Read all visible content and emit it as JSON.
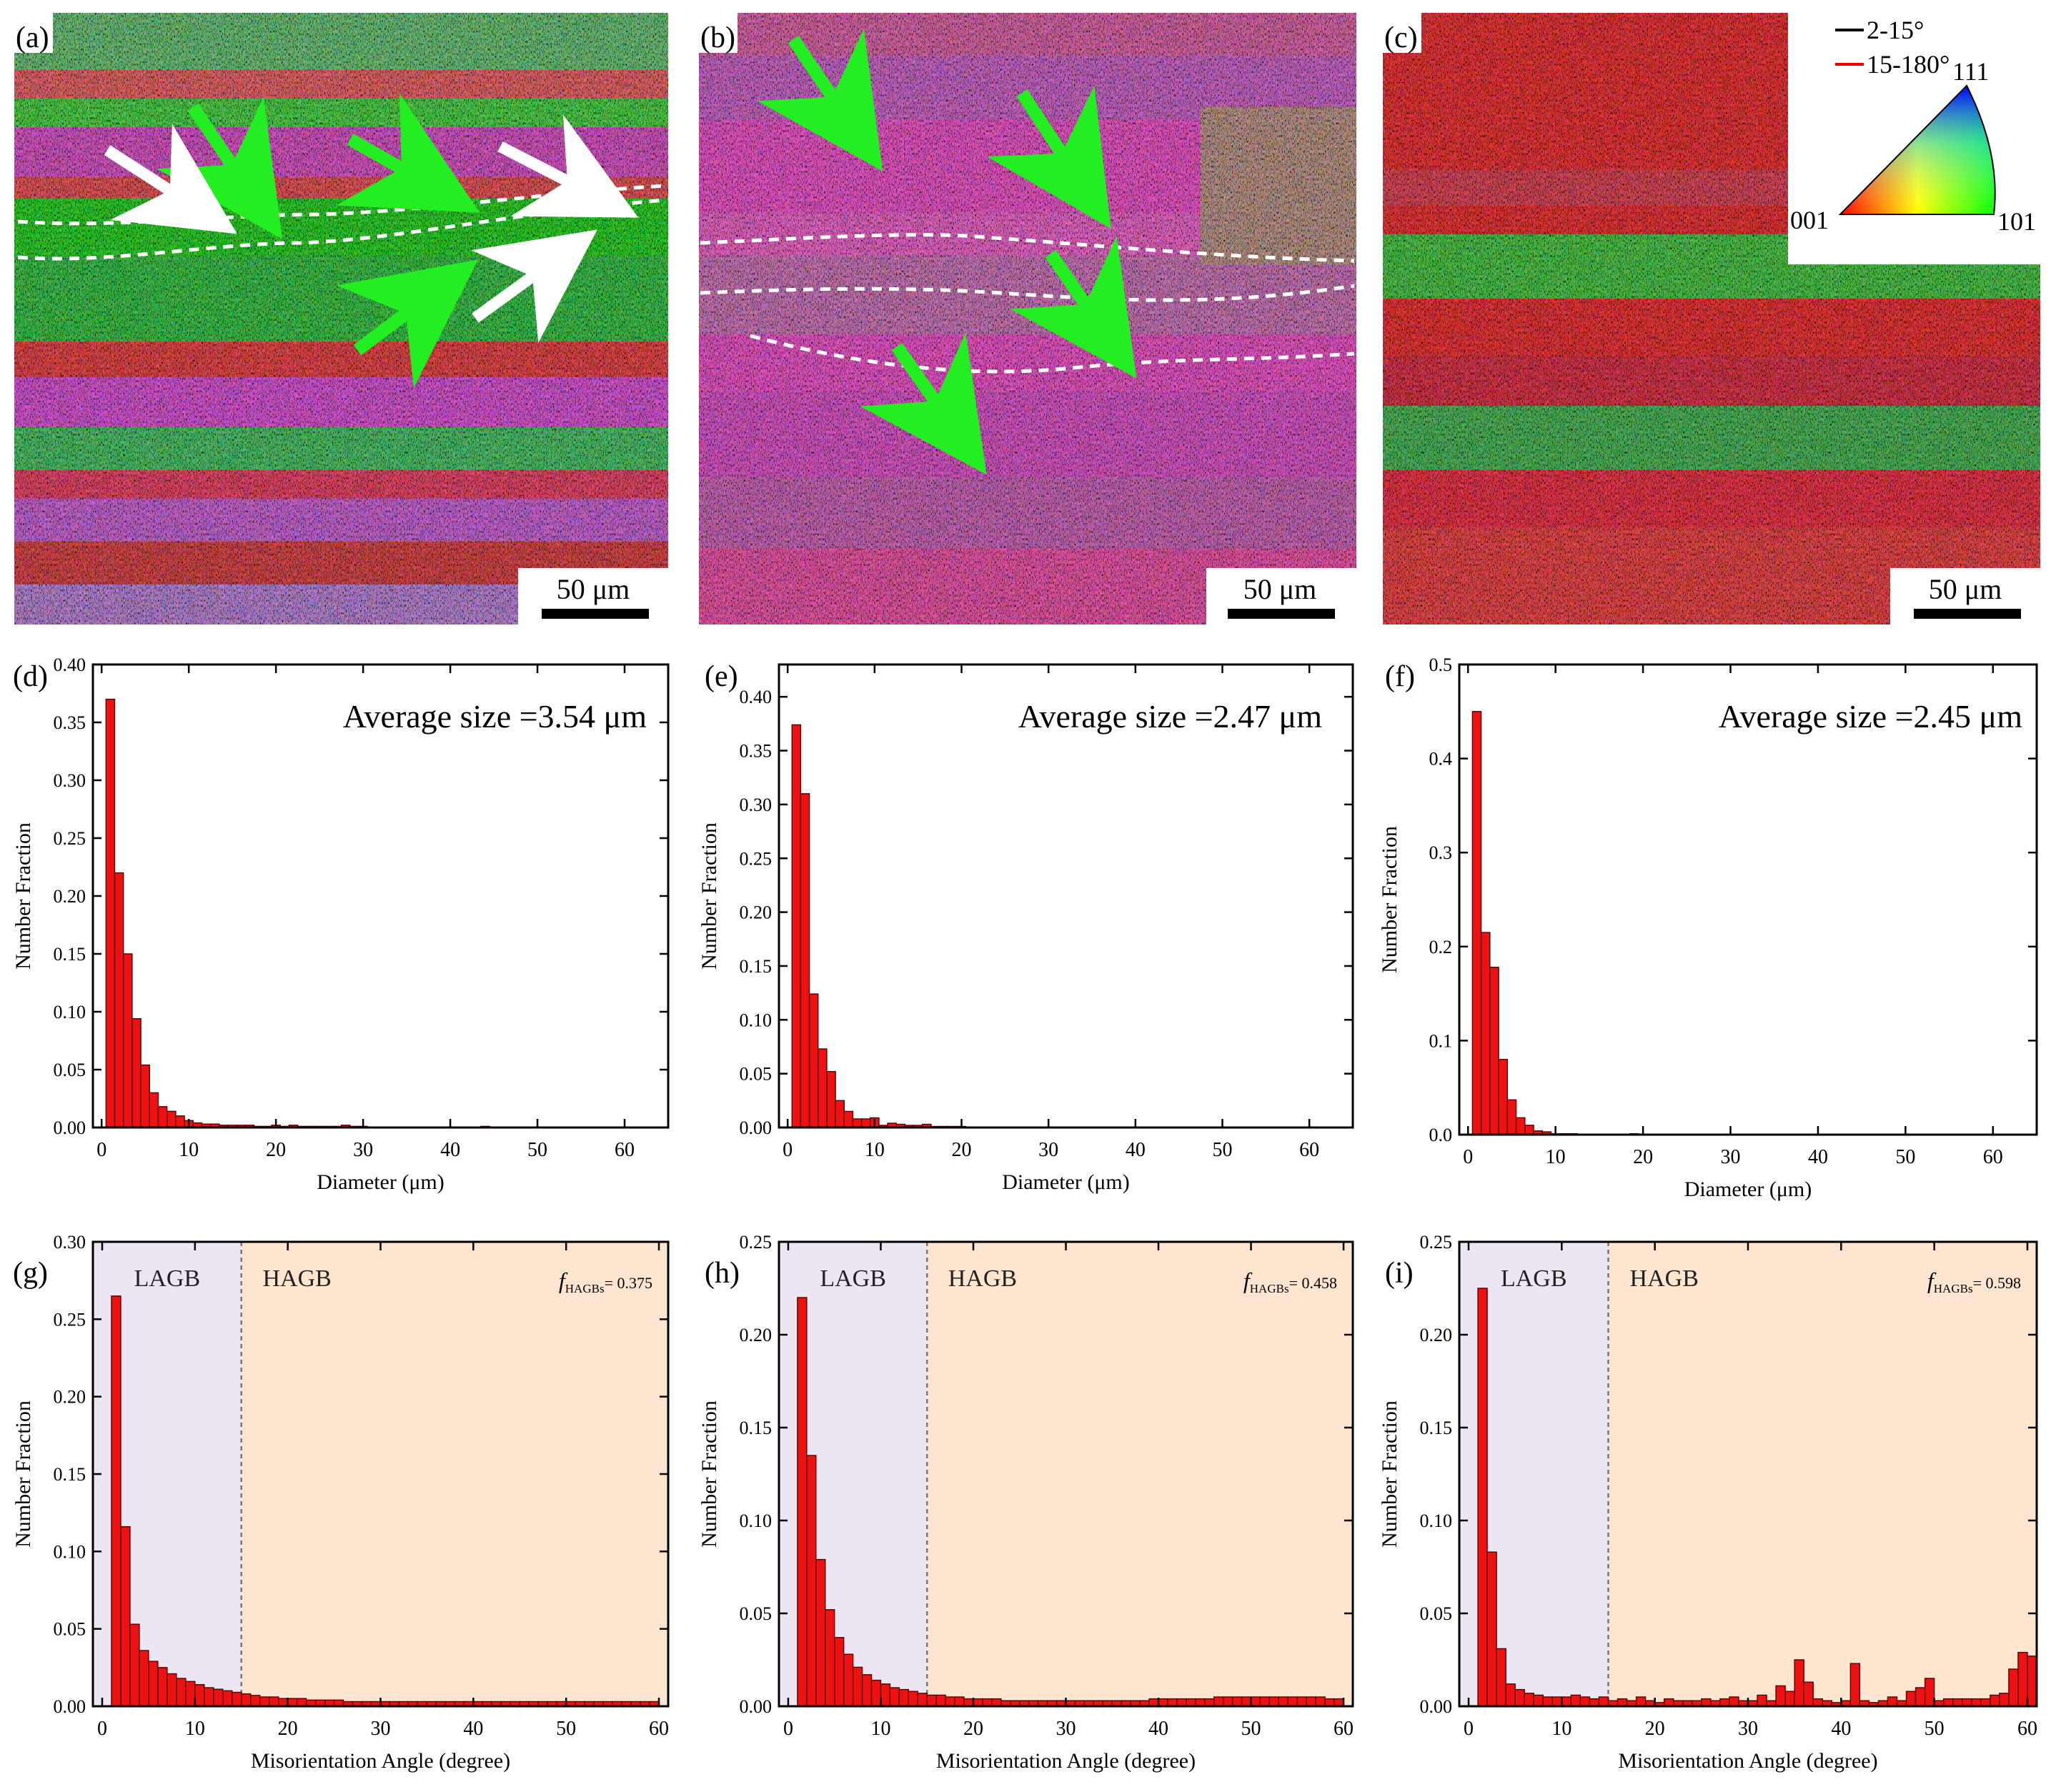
{
  "chart_data": [
    {
      "panel": "(a)",
      "type": "image",
      "kind": "EBSD IPF map",
      "scale_bar": "50 μm",
      "dominant_colors": [
        "#22dd22",
        "#ee44cc",
        "#ee2222"
      ]
    },
    {
      "panel": "(b)",
      "type": "image",
      "kind": "EBSD IPF map",
      "scale_bar": "50 μm",
      "dominant_colors": [
        "#ee44cc",
        "#22dd22"
      ]
    },
    {
      "panel": "(c)",
      "type": "image",
      "kind": "EBSD IPF map",
      "scale_bar": "50 μm",
      "dominant_colors": [
        "#ee2222",
        "#22cc44"
      ],
      "legend": {
        "boundaries": [
          {
            "label": "2-15°",
            "color": "#000000"
          },
          {
            "label": "15-180°",
            "color": "#ee0000"
          }
        ],
        "triangle_labels": [
          "001",
          "101",
          "111"
        ]
      }
    },
    {
      "panel": "(d)",
      "type": "bar",
      "annotation": "Average size =3.54 μm",
      "xlabel": "Diameter (μm)",
      "ylabel": "Number Fraction",
      "xlim": [
        -1,
        65
      ],
      "ylim": [
        0,
        0.4
      ],
      "xticks": [
        0,
        10,
        20,
        30,
        40,
        50,
        60
      ],
      "yticks": [
        "0.00",
        "0.05",
        "0.10",
        "0.15",
        "0.20",
        "0.25",
        "0.30",
        "0.35",
        "0.40"
      ],
      "bin_width": 1,
      "x": [
        1,
        2,
        3,
        4,
        5,
        6,
        7,
        8,
        9,
        10,
        11,
        12,
        13,
        14,
        15,
        16,
        17,
        18,
        19,
        20,
        21,
        22,
        23,
        24,
        25,
        26,
        27,
        28,
        29,
        30,
        44
      ],
      "values": [
        0.37,
        0.22,
        0.15,
        0.094,
        0.054,
        0.03,
        0.018,
        0.014,
        0.01,
        0.006,
        0.004,
        0.003,
        0.003,
        0.002,
        0.002,
        0.002,
        0.002,
        0.001,
        0.001,
        0.002,
        0.001,
        0.002,
        0.001,
        0.001,
        0.001,
        0.001,
        0.001,
        0.002,
        0.001,
        0.001,
        0.001
      ]
    },
    {
      "panel": "(e)",
      "type": "bar",
      "annotation": "Average size =2.47 μm",
      "xlabel": "Diameter (μm)",
      "ylabel": "Number Fraction",
      "xlim": [
        -1,
        65
      ],
      "ylim": [
        0,
        0.43
      ],
      "xticks": [
        0,
        10,
        20,
        30,
        40,
        50,
        60
      ],
      "yticks": [
        "0.00",
        "0.05",
        "0.10",
        "0.15",
        "0.20",
        "0.25",
        "0.30",
        "0.35",
        "0.40"
      ],
      "bin_width": 1,
      "x": [
        1,
        2,
        3,
        4,
        5,
        6,
        7,
        8,
        9,
        10,
        11,
        12,
        13,
        14,
        15,
        16,
        17,
        18,
        19,
        20
      ],
      "values": [
        0.374,
        0.31,
        0.124,
        0.073,
        0.052,
        0.025,
        0.015,
        0.008,
        0.008,
        0.009,
        0.002,
        0.004,
        0.003,
        0.002,
        0.002,
        0.003,
        0.001,
        0.001,
        0.001,
        0.001
      ]
    },
    {
      "panel": "(f)",
      "type": "bar",
      "annotation": "Average size =2.45 μm",
      "xlabel": "Diameter (μm)",
      "ylabel": "Number Fraction",
      "xlim": [
        -1,
        65
      ],
      "ylim": [
        0,
        0.5
      ],
      "xticks": [
        0,
        10,
        20,
        30,
        40,
        50,
        60
      ],
      "yticks": [
        "0.0",
        "0.1",
        "0.2",
        "0.3",
        "0.4",
        "0.5"
      ],
      "bin_width": 1,
      "x": [
        1,
        2,
        3,
        4,
        5,
        6,
        7,
        8,
        9,
        10,
        11,
        12,
        19
      ],
      "values": [
        0.45,
        0.215,
        0.178,
        0.08,
        0.037,
        0.018,
        0.01,
        0.004,
        0.003,
        0.001,
        0.001,
        0.001,
        0.001
      ]
    },
    {
      "panel": "(g)",
      "type": "bar",
      "xlabel": "Misorientation Angle (degree)",
      "ylabel": "Number Fraction",
      "xlim": [
        -1,
        61
      ],
      "ylim": [
        0,
        0.3
      ],
      "xticks": [
        0,
        10,
        20,
        30,
        40,
        50,
        60
      ],
      "yticks": [
        "0.00",
        "0.05",
        "0.10",
        "0.15",
        "0.20",
        "0.25",
        "0.30"
      ],
      "bin_width": 1,
      "x_start": 1.5,
      "regions": [
        {
          "label": "LAGB",
          "from": -1,
          "to": 15,
          "color": "#ebe6f2"
        },
        {
          "label": "HAGB",
          "from": 15,
          "to": 61,
          "color": "#fde5cf"
        }
      ],
      "f_HAGBs": {
        "symbol": "f",
        "subscript": "HAGBs",
        "value": "= 0.375"
      },
      "values": [
        0.265,
        0.116,
        0.053,
        0.036,
        0.029,
        0.025,
        0.021,
        0.018,
        0.016,
        0.014,
        0.012,
        0.011,
        0.01,
        0.009,
        0.008,
        0.007,
        0.006,
        0.006,
        0.005,
        0.005,
        0.005,
        0.004,
        0.004,
        0.004,
        0.004,
        0.003,
        0.003,
        0.003,
        0.003,
        0.003,
        0.003,
        0.003,
        0.003,
        0.003,
        0.003,
        0.003,
        0.003,
        0.003,
        0.003,
        0.003,
        0.003,
        0.003,
        0.003,
        0.003,
        0.003,
        0.003,
        0.003,
        0.003,
        0.003,
        0.003,
        0.003,
        0.003,
        0.003,
        0.003,
        0.003,
        0.003,
        0.003,
        0.003,
        0.003
      ]
    },
    {
      "panel": "(h)",
      "type": "bar",
      "xlabel": "Misorientation Angle (degree)",
      "ylabel": "Number Fraction",
      "xlim": [
        -1,
        61
      ],
      "ylim": [
        0,
        0.25
      ],
      "xticks": [
        0,
        10,
        20,
        30,
        40,
        50,
        60
      ],
      "yticks": [
        "0.00",
        "0.05",
        "0.10",
        "0.15",
        "0.20",
        "0.25"
      ],
      "bin_width": 1,
      "x_start": 1.5,
      "regions": [
        {
          "label": "LAGB",
          "from": -1,
          "to": 15,
          "color": "#ebe6f2"
        },
        {
          "label": "HAGB",
          "from": 15,
          "to": 61,
          "color": "#fde5cf"
        }
      ],
      "f_HAGBs": {
        "symbol": "f",
        "subscript": "HAGBs",
        "value": "= 0.458"
      },
      "values": [
        0.22,
        0.135,
        0.079,
        0.052,
        0.037,
        0.028,
        0.021,
        0.017,
        0.014,
        0.012,
        0.01,
        0.009,
        0.008,
        0.007,
        0.006,
        0.006,
        0.005,
        0.005,
        0.004,
        0.004,
        0.004,
        0.004,
        0.003,
        0.003,
        0.003,
        0.003,
        0.003,
        0.003,
        0.003,
        0.003,
        0.003,
        0.003,
        0.003,
        0.003,
        0.003,
        0.003,
        0.003,
        0.003,
        0.004,
        0.004,
        0.004,
        0.004,
        0.004,
        0.004,
        0.004,
        0.005,
        0.005,
        0.005,
        0.005,
        0.005,
        0.005,
        0.005,
        0.005,
        0.005,
        0.005,
        0.005,
        0.005,
        0.004,
        0.004
      ]
    },
    {
      "panel": "(i)",
      "type": "bar",
      "xlabel": "Misorientation Angle (degree)",
      "ylabel": "Number Fraction",
      "xlim": [
        -1,
        61
      ],
      "ylim": [
        0,
        0.25
      ],
      "xticks": [
        0,
        10,
        20,
        30,
        40,
        50,
        60
      ],
      "yticks": [
        "0.00",
        "0.05",
        "0.10",
        "0.15",
        "0.20",
        "0.25"
      ],
      "bin_width": 1,
      "x_start": 1.5,
      "regions": [
        {
          "label": "LAGB",
          "from": -1,
          "to": 15,
          "color": "#ebe6f2"
        },
        {
          "label": "HAGB",
          "from": 15,
          "to": 61,
          "color": "#fde5cf"
        }
      ],
      "f_HAGBs": {
        "symbol": "f",
        "subscript": "HAGBs",
        "value": "= 0.598"
      },
      "values": [
        0.225,
        0.083,
        0.031,
        0.012,
        0.009,
        0.007,
        0.006,
        0.005,
        0.005,
        0.005,
        0.006,
        0.005,
        0.004,
        0.005,
        0.003,
        0.004,
        0.003,
        0.005,
        0.003,
        0.002,
        0.004,
        0.003,
        0.003,
        0.003,
        0.004,
        0.003,
        0.004,
        0.005,
        0.003,
        0.003,
        0.006,
        0.003,
        0.011,
        0.008,
        0.025,
        0.013,
        0.004,
        0.003,
        0.002,
        0.003,
        0.023,
        0.003,
        0.002,
        0.003,
        0.005,
        0.003,
        0.008,
        0.01,
        0.015,
        0.003,
        0.004,
        0.004,
        0.004,
        0.004,
        0.004,
        0.006,
        0.007,
        0.02,
        0.029,
        0.027
      ]
    }
  ]
}
